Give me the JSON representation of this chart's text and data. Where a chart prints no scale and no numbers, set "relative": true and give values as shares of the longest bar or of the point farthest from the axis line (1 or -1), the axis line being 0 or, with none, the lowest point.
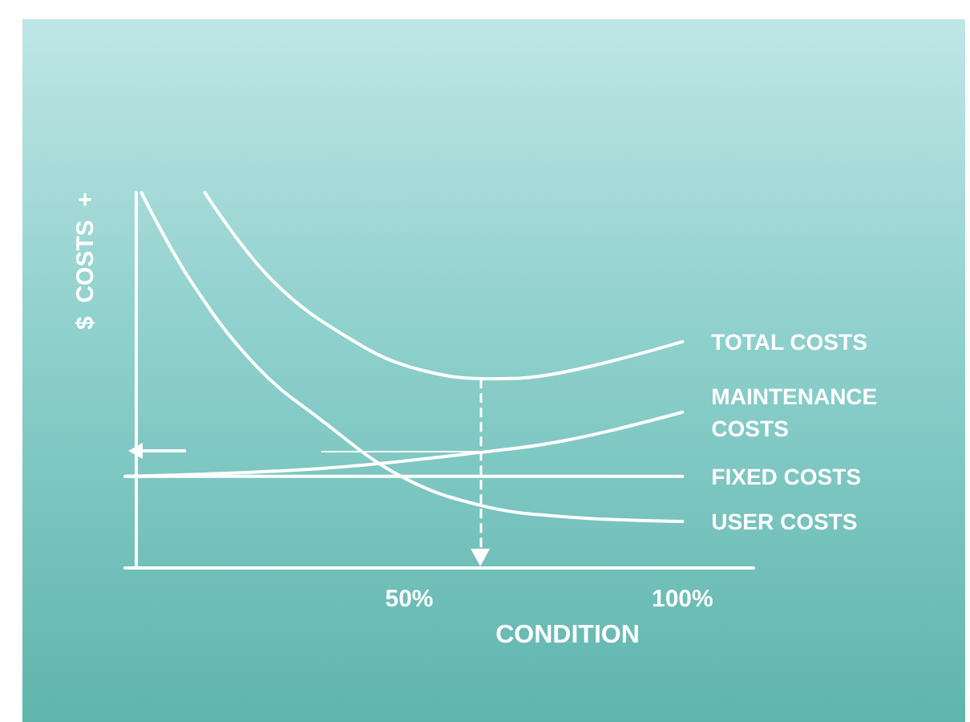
{
  "chart_data": {
    "type": "line",
    "relative": true,
    "xlabel": "CONDITION",
    "ylabel": "$  COSTS  +",
    "xlim": [
      -2,
      113
    ],
    "xticks": [
      {
        "value": 50,
        "label": "50%"
      },
      {
        "value": 100,
        "label": "100%"
      }
    ],
    "grid": false,
    "legend": false,
    "marker": "none",
    "line_style": "solid",
    "series": [
      {
        "name": "TOTAL COSTS",
        "color": "#ffffff",
        "x": [
          12.6,
          25,
          40,
          51.5,
          65,
          78,
          100
        ],
        "values": [
          1.0,
          0.765,
          0.603,
          0.53,
          0.504,
          0.521,
          0.603
        ]
      },
      {
        "name": "MAINTENANCE COSTS",
        "color": "#ffffff",
        "x": [
          -2,
          34,
          60,
          78,
          100
        ],
        "values": [
          0.244,
          0.265,
          0.303,
          0.338,
          0.415
        ]
      },
      {
        "name": "FIXED COSTS",
        "color": "#ffffff",
        "x": [
          -2,
          100
        ],
        "values": [
          0.244,
          0.244
        ]
      },
      {
        "color": "#ffffff",
        "x": [
          34,
          63
        ],
        "values": [
          0.31,
          0.31
        ]
      },
      {
        "name": "USER COSTS",
        "color": "#ffffff",
        "x": [
          1,
          10,
          22,
          34,
          48.5,
          63,
          78,
          100
        ],
        "values": [
          1.0,
          0.765,
          0.538,
          0.393,
          0.244,
          0.167,
          0.137,
          0.124
        ]
      }
    ],
    "ref_lines": [
      {
        "axis": "x",
        "value": 63,
        "line_style": "dashed",
        "color": "#ffffff"
      }
    ]
  }
}
